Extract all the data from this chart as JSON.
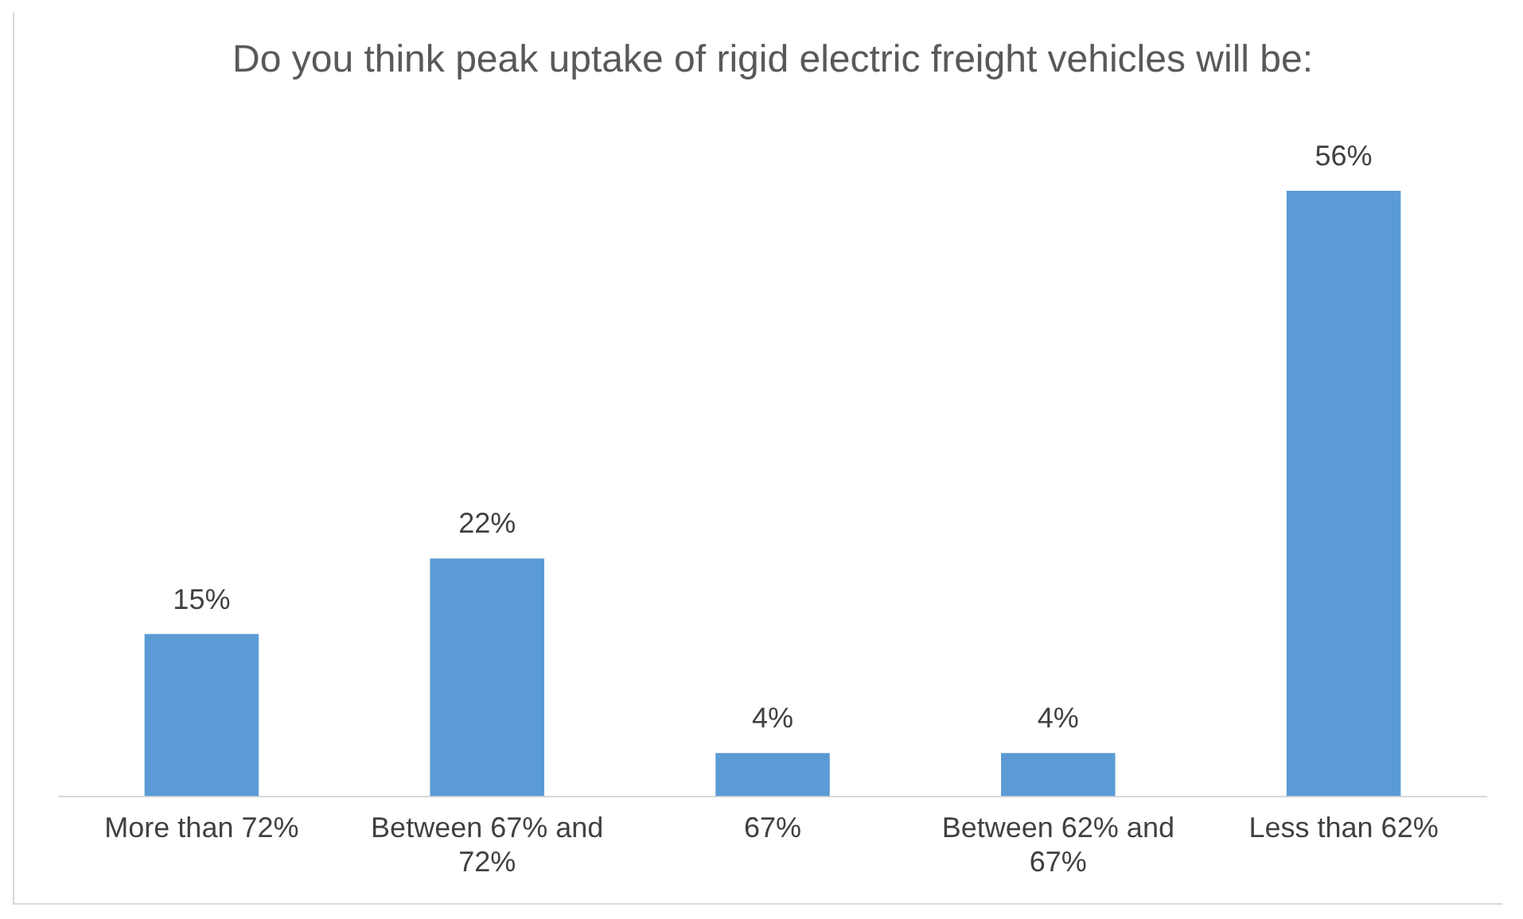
{
  "chart_data": {
    "type": "bar",
    "title": "Do you think peak uptake of rigid electric freight vehicles will be:",
    "categories": [
      "More than 72%",
      "Between 67% and 72%",
      "67%",
      "Between 62% and 67%",
      "Less than 62%"
    ],
    "values": [
      15,
      22,
      4,
      4,
      56
    ],
    "value_labels": [
      "15%",
      "22%",
      "4%",
      "4%",
      "56%"
    ],
    "color": "#5b9bd5",
    "grid": false,
    "legend": false
  }
}
